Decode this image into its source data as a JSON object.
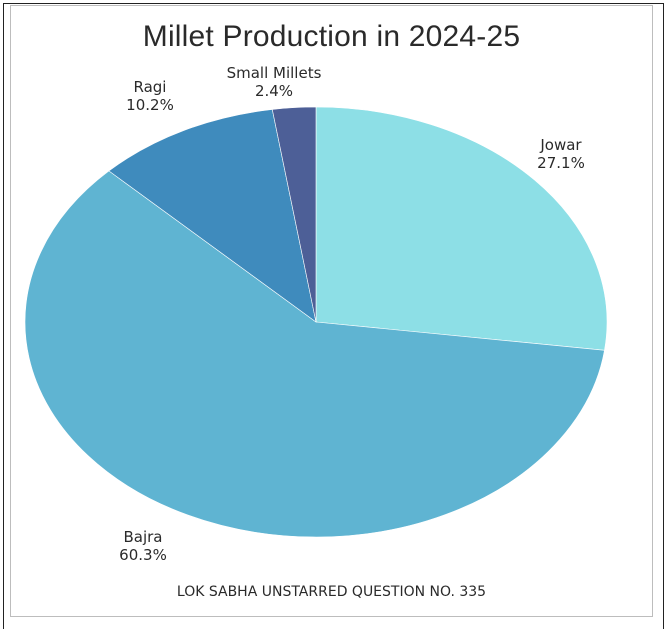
{
  "chart_data": {
    "type": "pie",
    "title": "Millet Production in 2024-25",
    "slices": [
      {
        "name": "Jowar",
        "value": 27.1,
        "label": "27.1%",
        "color": "#8ddfe6"
      },
      {
        "name": "Bajra",
        "value": 60.3,
        "label": "60.3%",
        "color": "#5fb4d2"
      },
      {
        "name": "Ragi",
        "value": 10.2,
        "label": "10.2%",
        "color": "#3f8bbd"
      },
      {
        "name": "Small Millets",
        "value": 2.4,
        "label": "2.4%",
        "color": "#4d5f97"
      }
    ],
    "start_angle_deg": 0,
    "direction": "clockwise",
    "legend": "none",
    "source_note": "LOK SABHA UNSTARRED QUESTION NO. 335"
  }
}
